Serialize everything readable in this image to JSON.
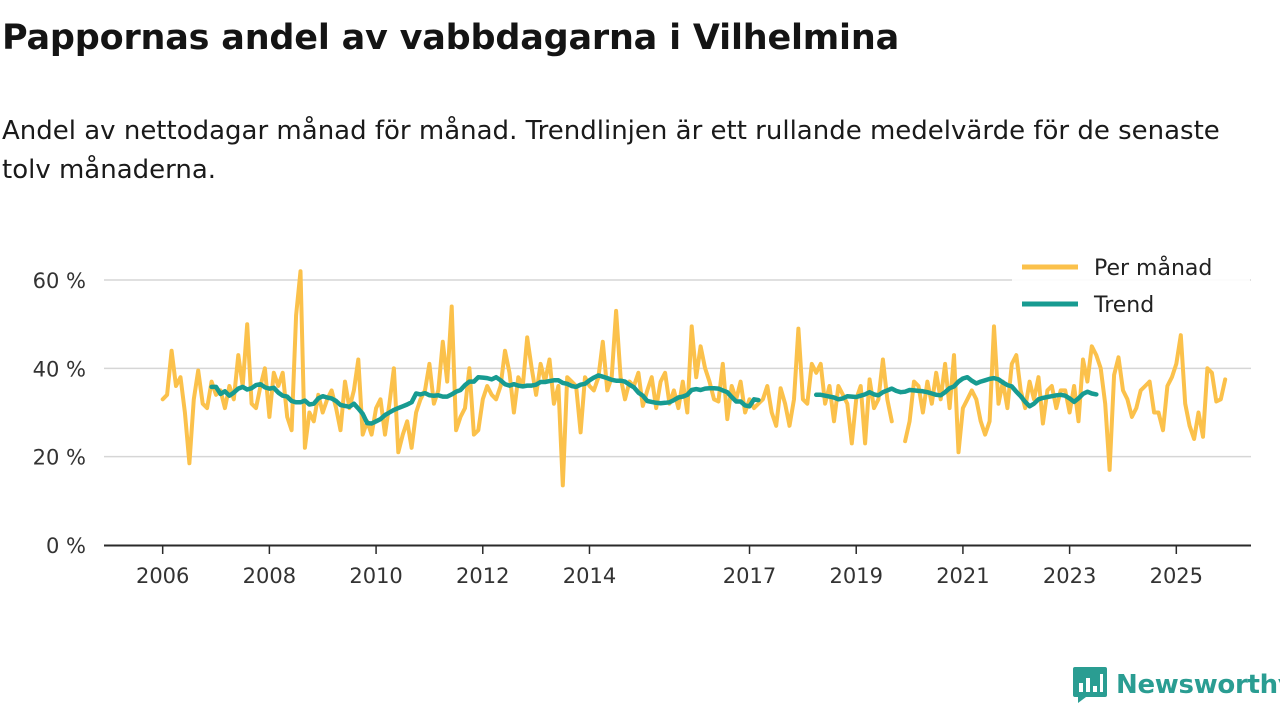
{
  "title": "Pappornas andel av vabbdagarna i Vilhelmina",
  "subtitle": "Andel av nettodagar månad för månad. Trendlinjen är ett rullande medelvärde för de senaste tolv månaderna.",
  "brand": {
    "name": "Newsworthy",
    "color": "#2a9d92"
  },
  "chart_data": {
    "type": "line",
    "x_start": 2006.0,
    "x_step": 0.0833333,
    "xlim": [
      2004.9,
      2026.4
    ],
    "ylim": [
      0,
      60
    ],
    "y_ticks": [
      0,
      20,
      40,
      60
    ],
    "y_tick_labels": [
      "0 %",
      "20 %",
      "40 %",
      "60 %"
    ],
    "x_ticks": [
      2006,
      2008,
      2010,
      2012,
      2014,
      2017,
      2019,
      2021,
      2023,
      2025
    ],
    "x_tick_labels": [
      "2006",
      "2008",
      "2010",
      "2012",
      "2014",
      "2017",
      "2019",
      "2021",
      "2023",
      "2025"
    ],
    "grid": true,
    "legend_position": "top-right",
    "series": [
      {
        "name": "Per månad",
        "color": "#fbc14b",
        "values": [
          33,
          34,
          44,
          36,
          38,
          30,
          18.5,
          33,
          39.5,
          32,
          31,
          37,
          34,
          35,
          31,
          36,
          33,
          43,
          36,
          50,
          32,
          31,
          36,
          40,
          29,
          39,
          36,
          39,
          29,
          26,
          52,
          62,
          22,
          30,
          28,
          34,
          30,
          33,
          35,
          31,
          26,
          37,
          31,
          35,
          42,
          25,
          28,
          25,
          31,
          33,
          25,
          32,
          40,
          21,
          25,
          28,
          22,
          30,
          33,
          35,
          41,
          32,
          35,
          46,
          37,
          54,
          26,
          29,
          31,
          40,
          25,
          26,
          33,
          36,
          34,
          33,
          36,
          44,
          39,
          30,
          38,
          36,
          47,
          40,
          34,
          41,
          37,
          42,
          32,
          36,
          13.5,
          38,
          37,
          36,
          25.5,
          38,
          36,
          35,
          38,
          46,
          35,
          38,
          53,
          38,
          33,
          37,
          36,
          39,
          31.5,
          35,
          38,
          31,
          37,
          39,
          32,
          35,
          31,
          37,
          30,
          49.5,
          38,
          45,
          40,
          37,
          33,
          32.5,
          41,
          28.5,
          36,
          33,
          37,
          30,
          33,
          31,
          32,
          33,
          36,
          30,
          27,
          35.5,
          32,
          27,
          33,
          49,
          33,
          32,
          41,
          39,
          41,
          32,
          36,
          28,
          36,
          34,
          32,
          23,
          33,
          36,
          23,
          37.5,
          31,
          33,
          42,
          33,
          28,
          null,
          null,
          23.5,
          28,
          37,
          36,
          30,
          37,
          32,
          39,
          33,
          41,
          31,
          43,
          21,
          31,
          33,
          35,
          33,
          28,
          25,
          28,
          49.5,
          32,
          37,
          31,
          41,
          43,
          35,
          31,
          37,
          33,
          38,
          27.5,
          35,
          36,
          31,
          35,
          35,
          30,
          36,
          28,
          42,
          37,
          45,
          43,
          40,
          32,
          17,
          38.5,
          42.5,
          35,
          33,
          29,
          31,
          35,
          36,
          37,
          30,
          30,
          26,
          36,
          38,
          41,
          47.5,
          32,
          27,
          24,
          30,
          24.5,
          40,
          39,
          32.5,
          33,
          37.5
        ]
      },
      {
        "name": "Trend",
        "color": "#179b91",
        "values": [
          null,
          null,
          null,
          null,
          null,
          null,
          null,
          null,
          null,
          null,
          null,
          35.8,
          35.8,
          34.2,
          34.8,
          33.8,
          34.5,
          35.4,
          35.8,
          35.2,
          35.5,
          36.2,
          36.4,
          35.7,
          35.4,
          35.6,
          34.5,
          33.8,
          33.6,
          32.6,
          32.3,
          32.3,
          32.7,
          31.8,
          32.0,
          33.2,
          33.7,
          33.4,
          33.2,
          32.6,
          31.7,
          31.5,
          31.3,
          32.0,
          30.9,
          29.7,
          27.6,
          27.5,
          28.0,
          28.5,
          29.4,
          30.0,
          30.6,
          31.0,
          31.4,
          31.8,
          32.3,
          34.3,
          34.1,
          34.4,
          33.9,
          33.8,
          33.9,
          33.6,
          33.6,
          34.1,
          34.7,
          35.1,
          36.2,
          37.0,
          37.0,
          38.0,
          37.9,
          37.8,
          37.5,
          38.0,
          37.3,
          36.4,
          36.1,
          36.4,
          36.1,
          35.9,
          36.1,
          36.1,
          36.3,
          36.9,
          36.9,
          37.1,
          37.3,
          37.3,
          36.7,
          36.5,
          36.0,
          35.8,
          36.3,
          36.5,
          37.3,
          37.9,
          38.4,
          38.1,
          37.8,
          37.4,
          37.2,
          37.2,
          37.0,
          36.3,
          35.7,
          34.5,
          33.8,
          32.6,
          32.4,
          32.2,
          32.1,
          32.2,
          32.3,
          32.8,
          33.4,
          33.6,
          34.0,
          35.1,
          35.3,
          35.1,
          35.4,
          35.5,
          35.5,
          35.4,
          35.0,
          34.6,
          33.5,
          32.5,
          32.5,
          31.6,
          31.4,
          33.0,
          32.8,
          null,
          null,
          null,
          null,
          null,
          null,
          null,
          null,
          null,
          null,
          null,
          null,
          34.0,
          34.0,
          33.8,
          33.6,
          33.4,
          33.0,
          33.2,
          33.7,
          33.6,
          33.5,
          33.8,
          34.1,
          34.6,
          34.1,
          33.9,
          34.6,
          35.0,
          35.4,
          34.9,
          34.6,
          34.7,
          35.1,
          35.0,
          34.9,
          34.8,
          34.6,
          34.3,
          34.0,
          33.9,
          34.6,
          35.5,
          35.9,
          37.0,
          37.7,
          38.0,
          37.2,
          36.6,
          37.0,
          37.3,
          37.6,
          37.8,
          37.5,
          36.8,
          36.2,
          35.9,
          34.7,
          33.7,
          32.4,
          31.4,
          32.0,
          33.0,
          33.3,
          33.5,
          33.7,
          33.9,
          34.0,
          33.8,
          33.2,
          32.4,
          33.2,
          34.2,
          34.7,
          34.3,
          34.1
        ]
      }
    ]
  }
}
